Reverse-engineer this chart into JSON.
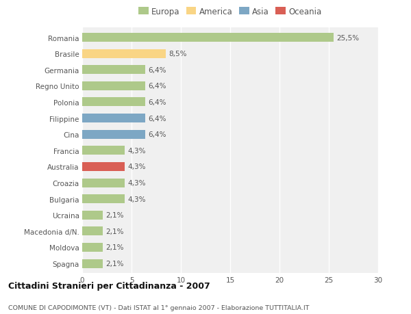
{
  "categories": [
    "Romania",
    "Brasile",
    "Germania",
    "Regno Unito",
    "Polonia",
    "Filippine",
    "Cina",
    "Francia",
    "Australia",
    "Croazia",
    "Bulgaria",
    "Ucraina",
    "Macedonia d/N.",
    "Moldova",
    "Spagna"
  ],
  "values": [
    25.5,
    8.5,
    6.4,
    6.4,
    6.4,
    6.4,
    6.4,
    4.3,
    4.3,
    4.3,
    4.3,
    2.1,
    2.1,
    2.1,
    2.1
  ],
  "labels": [
    "25,5%",
    "8,5%",
    "6,4%",
    "6,4%",
    "6,4%",
    "6,4%",
    "6,4%",
    "4,3%",
    "4,3%",
    "4,3%",
    "4,3%",
    "2,1%",
    "2,1%",
    "2,1%",
    "2,1%"
  ],
  "continent": [
    "Europa",
    "America",
    "Europa",
    "Europa",
    "Europa",
    "Asia",
    "Asia",
    "Europa",
    "Oceania",
    "Europa",
    "Europa",
    "Europa",
    "Europa",
    "Europa",
    "Europa"
  ],
  "colors": {
    "Europa": "#aec98a",
    "America": "#f9d585",
    "Asia": "#7da7c4",
    "Oceania": "#d95f55"
  },
  "legend_order": [
    "Europa",
    "America",
    "Asia",
    "Oceania"
  ],
  "legend_colors": [
    "#aec98a",
    "#f9d585",
    "#7da7c4",
    "#d95f55"
  ],
  "title": "Cittadini Stranieri per Cittadinanza - 2007",
  "subtitle": "COMUNE DI CAPODIMONTE (VT) - Dati ISTAT al 1° gennaio 2007 - Elaborazione TUTTITALIA.IT",
  "xlim": [
    0,
    30
  ],
  "xticks": [
    0,
    5,
    10,
    15,
    20,
    25,
    30
  ],
  "bg_color": "#ffffff",
  "plot_bg_color": "#f0f0f0",
  "grid_color": "#ffffff",
  "label_color": "#555555",
  "title_color": "#111111",
  "subtitle_color": "#555555"
}
